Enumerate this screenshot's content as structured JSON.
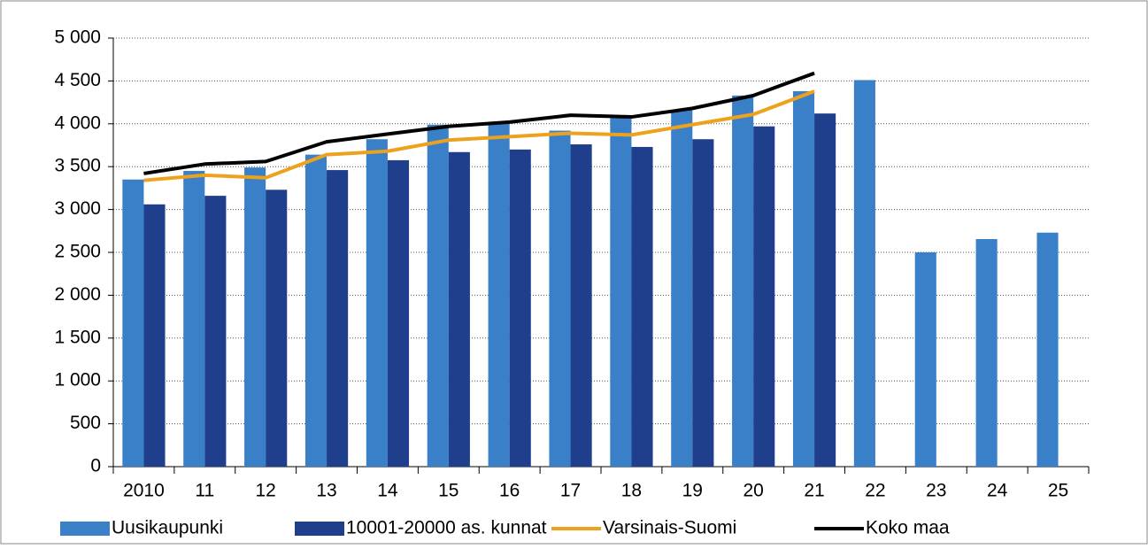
{
  "chart_data": {
    "type": "bar_line",
    "categories": [
      "2010",
      "11",
      "12",
      "13",
      "14",
      "15",
      "16",
      "17",
      "18",
      "19",
      "20",
      "21",
      "22",
      "23",
      "24",
      "25"
    ],
    "series": [
      {
        "name": "Uusikaupunki",
        "kind": "bar",
        "color": "#3a80c8",
        "values": [
          3350,
          3450,
          3490,
          3640,
          3820,
          3990,
          4000,
          3920,
          4100,
          4160,
          4330,
          4380,
          4510,
          2500,
          2655,
          2730
        ]
      },
      {
        "name": "10001-20000 as. kunnat",
        "kind": "bar",
        "color": "#1f3e8c",
        "values": [
          3060,
          3160,
          3230,
          3460,
          3575,
          3670,
          3700,
          3760,
          3730,
          3820,
          3970,
          4120,
          null,
          null,
          null,
          null
        ]
      },
      {
        "name": "Varsinais-Suomi",
        "kind": "line",
        "color": "#eda21e",
        "values": [
          3340,
          3400,
          3370,
          3640,
          3680,
          3810,
          3850,
          3890,
          3870,
          3990,
          4110,
          4380,
          null,
          null,
          null,
          null
        ]
      },
      {
        "name": "Koko maa",
        "kind": "line",
        "color": "#000000",
        "values": [
          3420,
          3530,
          3560,
          3790,
          3880,
          3970,
          4020,
          4100,
          4080,
          4180,
          4330,
          4590,
          null,
          null,
          null,
          null
        ]
      }
    ],
    "ylim": [
      0,
      5000
    ],
    "yticks": [
      {
        "value": 0,
        "label": "0"
      },
      {
        "value": 500,
        "label": "500"
      },
      {
        "value": 1000,
        "label": "1 000"
      },
      {
        "value": 1500,
        "label": "1 500"
      },
      {
        "value": 2000,
        "label": "2 000"
      },
      {
        "value": 2500,
        "label": "2 500"
      },
      {
        "value": 3000,
        "label": "3 000"
      },
      {
        "value": 3500,
        "label": "3 500"
      },
      {
        "value": 4000,
        "label": "4 000"
      },
      {
        "value": 4500,
        "label": "4 500"
      },
      {
        "value": 5000,
        "label": "5 000"
      }
    ],
    "grid": true,
    "legend": "bottom"
  }
}
